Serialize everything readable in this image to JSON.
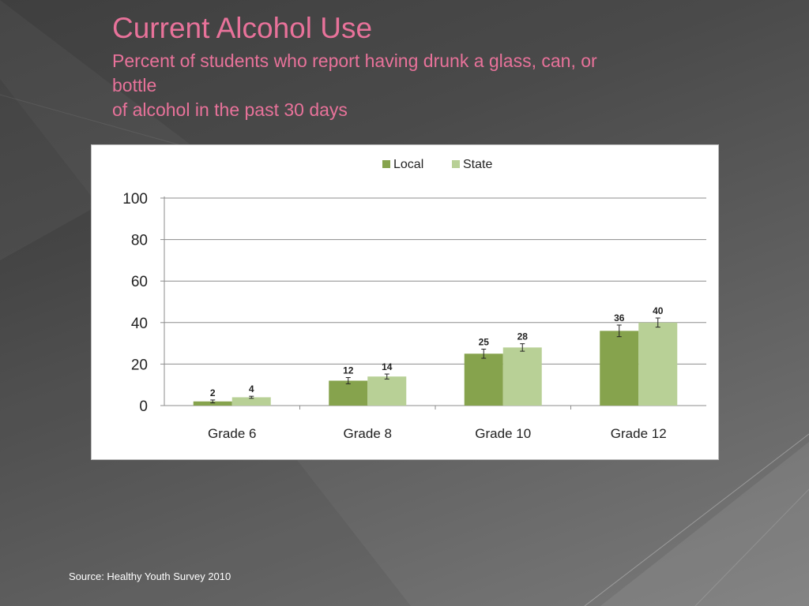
{
  "slide": {
    "title": "Current Alcohol Use",
    "subtitle_lines": [
      "Percent of students who report having drunk a glass, can, or",
      "bottle",
      "of alcohol in the past 30 days"
    ],
    "source": "Source: Healthy Youth Survey 2010"
  },
  "colors": {
    "title": "#e8729a",
    "local": "#86a34d",
    "state": "#b8d096",
    "grid": "#8c8c8c"
  },
  "chart_data": {
    "type": "bar",
    "categories": [
      "Grade 6",
      "Grade 8",
      "Grade 10",
      "Grade 12"
    ],
    "series": [
      {
        "name": "Local",
        "values": [
          2,
          12,
          25,
          36
        ],
        "labels": [
          "2",
          "12",
          "25",
          "36"
        ],
        "error": [
          0.7,
          1.5,
          2.2,
          2.8
        ]
      },
      {
        "name": "State",
        "values": [
          4,
          14,
          28,
          40
        ],
        "labels": [
          "4",
          "14",
          "28",
          "40"
        ],
        "error": [
          0.5,
          1.2,
          1.8,
          2.2
        ]
      }
    ],
    "ylim": [
      0,
      100
    ],
    "yticks": [
      "0",
      "20",
      "40",
      "60",
      "80",
      "100"
    ],
    "ytick_values": [
      0,
      20,
      40,
      60,
      80,
      100
    ],
    "grid": true,
    "legend": "top-center",
    "error_bars": true
  }
}
